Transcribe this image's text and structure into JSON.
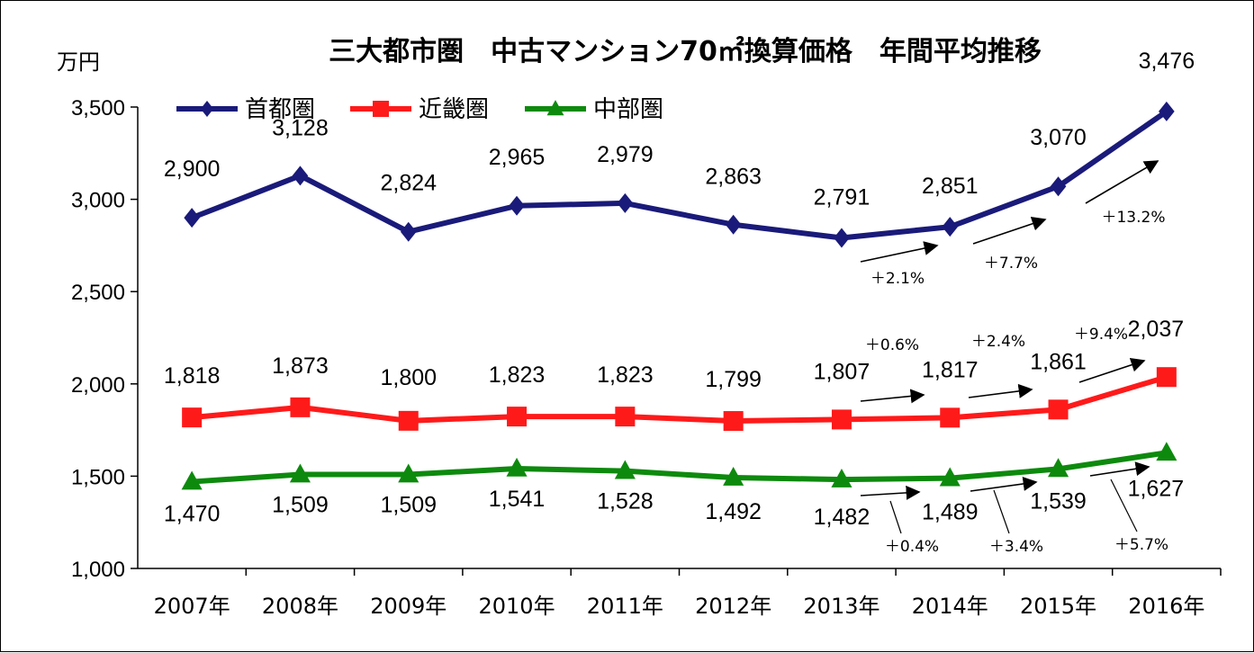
{
  "chart_data": {
    "type": "line",
    "title": "三大都市圏　中古マンション70㎡換算価格　年間平均推移",
    "ylabel": "万円",
    "xlabel": "",
    "ylim": [
      1000,
      3500
    ],
    "yticks": [
      1000,
      1500,
      2000,
      2500,
      3000,
      3500
    ],
    "ytick_labels": [
      "1,000",
      "1,500",
      "2,000",
      "2,500",
      "3,000",
      "3,500"
    ],
    "categories": [
      "2007年",
      "2008年",
      "2009年",
      "2010年",
      "2011年",
      "2012年",
      "2013年",
      "2014年",
      "2015年",
      "2016年"
    ],
    "grid": false,
    "legend_position": "top-left",
    "series": [
      {
        "name": "首都圏",
        "color": "#1a1a7a",
        "marker": "diamond",
        "values": [
          2900,
          3128,
          2824,
          2965,
          2979,
          2863,
          2791,
          2851,
          3070,
          3476
        ],
        "labels": [
          "2,900",
          "3,128",
          "2,824",
          "2,965",
          "2,979",
          "2,863",
          "2,791",
          "2,851",
          "3,070",
          "3,476"
        ]
      },
      {
        "name": "近畿圏",
        "color": "#ff1a1a",
        "marker": "square",
        "values": [
          1818,
          1873,
          1800,
          1823,
          1823,
          1799,
          1807,
          1817,
          1861,
          2037
        ],
        "labels": [
          "1,818",
          "1,873",
          "1,800",
          "1,823",
          "1,823",
          "1,799",
          "1,807",
          "1,817",
          "1,861",
          "2,037"
        ]
      },
      {
        "name": "中部圏",
        "color": "#0d8a0d",
        "marker": "triangle",
        "values": [
          1470,
          1509,
          1509,
          1541,
          1528,
          1492,
          1482,
          1489,
          1539,
          1627
        ],
        "labels": [
          "1,470",
          "1,509",
          "1,509",
          "1,541",
          "1,528",
          "1,492",
          "1,482",
          "1,489",
          "1,539",
          "1,627"
        ]
      }
    ],
    "annotations": {
      "首都圏": [
        "＋2.1%",
        "＋7.7%",
        "＋13.2%"
      ],
      "近畿圏": [
        "＋0.6%",
        "＋2.4%",
        "＋9.4%"
      ],
      "中部圏": [
        "＋0.4%",
        "＋3.4%",
        "＋5.7%"
      ]
    }
  }
}
